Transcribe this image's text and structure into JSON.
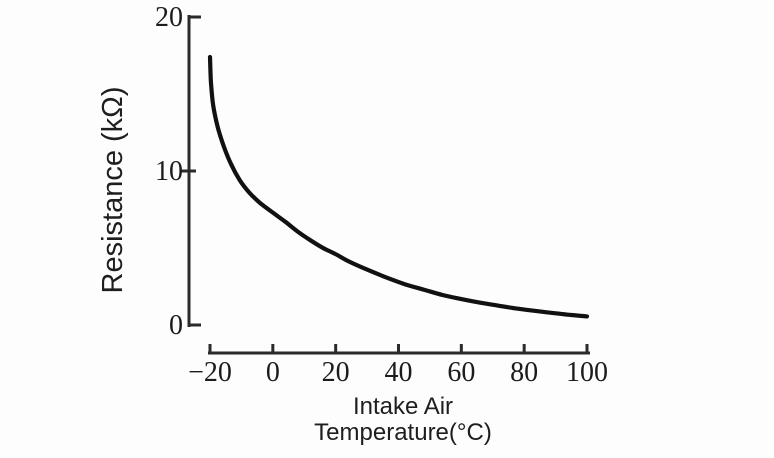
{
  "chart_data": {
    "type": "line",
    "title": "",
    "ylabel": "Resistance (kΩ)",
    "xlabel_line1": "Intake Air",
    "xlabel_line2": "Temperature(°C)",
    "xlim": [
      -20,
      100
    ],
    "ylim": [
      0,
      20
    ],
    "grid": false,
    "legend": "none",
    "x_ticks": [
      -20,
      0,
      20,
      40,
      60,
      80,
      100
    ],
    "x_tick_labels": [
      "−20",
      "0",
      "20",
      "40",
      "60",
      "80",
      "100"
    ],
    "y_ticks": [
      0,
      10,
      20
    ],
    "y_tick_labels": [
      "0",
      "10",
      "20"
    ],
    "series": [
      {
        "name": "intake-air-temp-sensor-resistance",
        "points_format": [
          "temperature_C",
          "resistance_kOhm"
        ],
        "points": [
          [
            -20,
            17.4
          ],
          [
            -19.7,
            15.8
          ],
          [
            -19.0,
            14.3
          ],
          [
            -17.6,
            12.9
          ],
          [
            -15.6,
            11.6
          ],
          [
            -13.2,
            10.4
          ],
          [
            -10.5,
            9.4
          ],
          [
            -7.5,
            8.6
          ],
          [
            -4.2,
            7.95
          ],
          [
            0,
            7.3
          ],
          [
            4,
            6.7
          ],
          [
            8,
            6.05
          ],
          [
            12,
            5.5
          ],
          [
            16,
            5.0
          ],
          [
            20,
            4.6
          ],
          [
            24,
            4.15
          ],
          [
            30,
            3.6
          ],
          [
            36,
            3.1
          ],
          [
            42,
            2.65
          ],
          [
            48,
            2.3
          ],
          [
            54,
            1.95
          ],
          [
            60,
            1.68
          ],
          [
            66,
            1.45
          ],
          [
            72,
            1.25
          ],
          [
            78,
            1.06
          ],
          [
            84,
            0.9
          ],
          [
            90,
            0.76
          ],
          [
            95,
            0.65
          ],
          [
            100,
            0.56
          ]
        ]
      }
    ],
    "colors": {
      "curve": "#111111",
      "axis": "#2b2b2b",
      "text": "#1c1c1c",
      "background": "#fdfdfd"
    }
  }
}
